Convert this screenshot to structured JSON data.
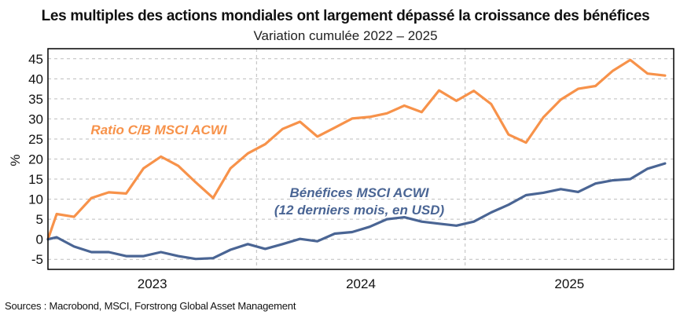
{
  "chart_data": {
    "type": "line",
    "title": "Les multiples des actions mondiales ont largement dépassé la croissance des bénéfices",
    "subtitle": "Variation cumulée 2022 – 2025",
    "xlabel": "",
    "ylabel": "%",
    "ylim": [
      -7.5,
      47.5
    ],
    "yticks": [
      45,
      40,
      35,
      30,
      25,
      20,
      15,
      10,
      5,
      0,
      -5
    ],
    "ytick_labels": [
      "45",
      "40",
      "35",
      "30",
      "25",
      "20",
      "15",
      "10",
      "5",
      "0",
      "-5"
    ],
    "x_unit": "months from axis start",
    "xlim": [
      0,
      36
    ],
    "x_categories": [
      "2023",
      "2024",
      "2025"
    ],
    "x_category_bounds": [
      [
        0,
        12
      ],
      [
        12,
        24
      ],
      [
        24,
        36
      ]
    ],
    "grid": {
      "horizontal": true,
      "vertical_separators": true,
      "style": "dashed"
    },
    "x": [
      0,
      0.5,
      1.5,
      2.5,
      3.5,
      4.5,
      5.5,
      6.5,
      7.5,
      8.5,
      9.5,
      10.5,
      11.5,
      12.5,
      13.5,
      14.5,
      15.5,
      16.5,
      17.5,
      18.5,
      19.5,
      20.5,
      21.5,
      22.5,
      23.5,
      24.5,
      25.5,
      26.5,
      27.5,
      28.5,
      29.5,
      30.5,
      31.5,
      32.5,
      33.5,
      34.5,
      35.5
    ],
    "series": [
      {
        "name": "Ratio C/B MSCI ACWI",
        "color": "#F7924A",
        "annotation": "Ratio C/B MSCI ACWI",
        "values": [
          0,
          6.3,
          5.6,
          10.3,
          11.7,
          11.4,
          17.7,
          20.6,
          18.3,
          14.2,
          10.3,
          17.7,
          21.4,
          23.7,
          27.5,
          29.3,
          25.6,
          27.8,
          30.1,
          30.5,
          31.4,
          33.3,
          31.7,
          37.1,
          34.5,
          37.0,
          33.7,
          26.1,
          24.1,
          30.4,
          34.8,
          37.5,
          38.2,
          42.0,
          44.7,
          41.3,
          40.8
        ]
      },
      {
        "name": "Bénéfices MSCI ACWI (12 derniers mois, en USD)",
        "color": "#4A6594",
        "annotation_lines": [
          "Bénéfices MSCI ACWI",
          "(12 derniers mois, en USD)"
        ],
        "values": [
          0,
          0.5,
          -1.8,
          -3.2,
          -3.2,
          -4.2,
          -4.2,
          -3.2,
          -4.2,
          -4.9,
          -4.7,
          -2.6,
          -1.2,
          -2.4,
          -1.2,
          0.1,
          -0.5,
          1.4,
          1.8,
          3.1,
          5.0,
          5.5,
          4.4,
          3.9,
          3.4,
          4.4,
          6.7,
          8.6,
          11.0,
          11.6,
          12.5,
          11.8,
          13.9,
          14.7,
          15.0,
          17.6,
          18.9
        ]
      }
    ],
    "legend": "inline-annotations",
    "source": "Sources : Macrobond, MSCI, Forstrong Global Asset Management"
  }
}
